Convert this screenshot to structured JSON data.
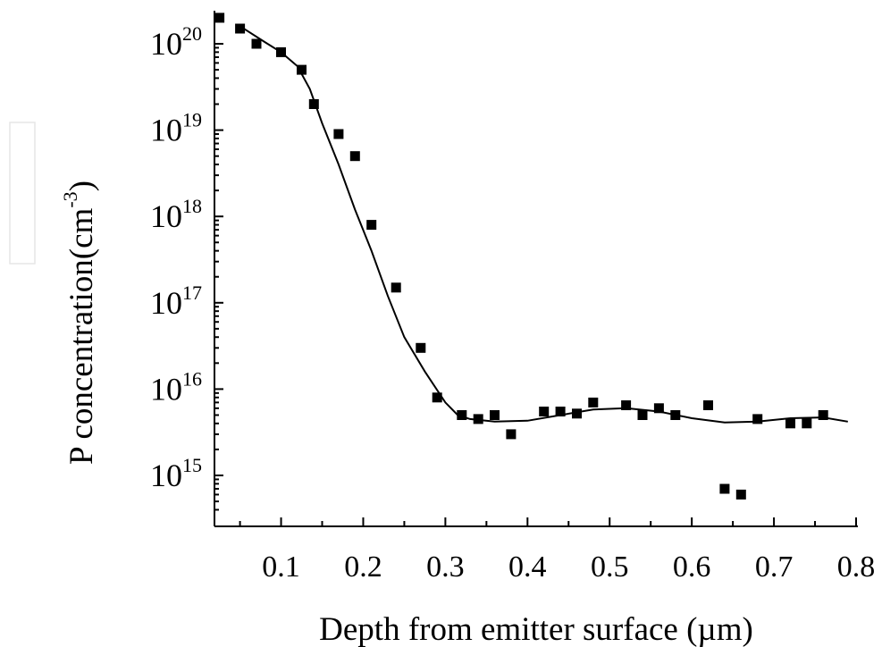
{
  "chart_data": {
    "type": "scatter",
    "title": "",
    "xlabel": "Depth from emitter surface (µm)",
    "ylabel_main": "P concentration(cm",
    "ylabel_sup": "-3",
    "ylabel_close": ")",
    "xlim": [
      0.02,
      0.8
    ],
    "ylim_log10": [
      14.5,
      20.3
    ],
    "yscale": "log",
    "grid": false,
    "x_ticks": [
      {
        "value": 0.1,
        "label": "0.1"
      },
      {
        "value": 0.2,
        "label": "0.2"
      },
      {
        "value": 0.3,
        "label": "0.3"
      },
      {
        "value": 0.4,
        "label": "0.4"
      },
      {
        "value": 0.5,
        "label": "0.5"
      },
      {
        "value": 0.6,
        "label": "0.6"
      },
      {
        "value": 0.7,
        "label": "0.7"
      },
      {
        "value": 0.8,
        "label": "0.8"
      }
    ],
    "y_ticks": [
      {
        "exp": 15,
        "base": "10",
        "sup": "15"
      },
      {
        "exp": 16,
        "base": "10",
        "sup": "16"
      },
      {
        "exp": 17,
        "base": "10",
        "sup": "17"
      },
      {
        "exp": 18,
        "base": "10",
        "sup": "18"
      },
      {
        "exp": 19,
        "base": "10",
        "sup": "19"
      },
      {
        "exp": 20,
        "base": "10",
        "sup": "20"
      }
    ],
    "series": [
      {
        "kind": "markers",
        "x": [
          0.025,
          0.05,
          0.07,
          0.1,
          0.125,
          0.14,
          0.17,
          0.19,
          0.21,
          0.24,
          0.27,
          0.29,
          0.32,
          0.34,
          0.36,
          0.38,
          0.42,
          0.44,
          0.46,
          0.48,
          0.52,
          0.54,
          0.56,
          0.58,
          0.62,
          0.64,
          0.66,
          0.68,
          0.72,
          0.74,
          0.76
        ],
        "y": [
          2e+20,
          1.5e+20,
          1e+20,
          8e+19,
          5e+19,
          2e+19,
          9e+18,
          5e+18,
          8e+17,
          1.5e+17,
          3e+16,
          8000000000000000.0,
          5000000000000000.0,
          4500000000000000.0,
          5000000000000000.0,
          3000000000000000.0,
          5500000000000000.0,
          5500000000000000.0,
          5200000000000000.0,
          7000000000000000.0,
          6500000000000000.0,
          5000000000000000.0,
          6000000000000000.0,
          5000000000000000.0,
          6500000000000000.0,
          700000000000000.0,
          600000000000000.0,
          4500000000000000.0,
          4000000000000000.0,
          4000000000000000.0,
          5000000000000000.0
        ]
      },
      {
        "kind": "line",
        "x": [
          0.05,
          0.08,
          0.1,
          0.12,
          0.135,
          0.15,
          0.17,
          0.19,
          0.21,
          0.23,
          0.25,
          0.275,
          0.3,
          0.315,
          0.33,
          0.36,
          0.4,
          0.44,
          0.48,
          0.52,
          0.56,
          0.6,
          0.64,
          0.68,
          0.72,
          0.76,
          0.79
        ],
        "y": [
          1.6e+20,
          1.05e+20,
          8e+19,
          5.5e+19,
          3e+19,
          1.2e+19,
          4e+18,
          1.2e+18,
          4e+17,
          1.2e+17,
          4e+16,
          1.6e+16,
          7000000000000000.0,
          5000000000000000.0,
          4500000000000000.0,
          4200000000000000.0,
          4300000000000000.0,
          5000000000000000.0,
          5800000000000000.0,
          6000000000000000.0,
          5500000000000000.0,
          4600000000000000.0,
          4100000000000000.0,
          4200000000000000.0,
          4600000000000000.0,
          4700000000000000.0,
          4200000000000000.0
        ]
      }
    ]
  }
}
